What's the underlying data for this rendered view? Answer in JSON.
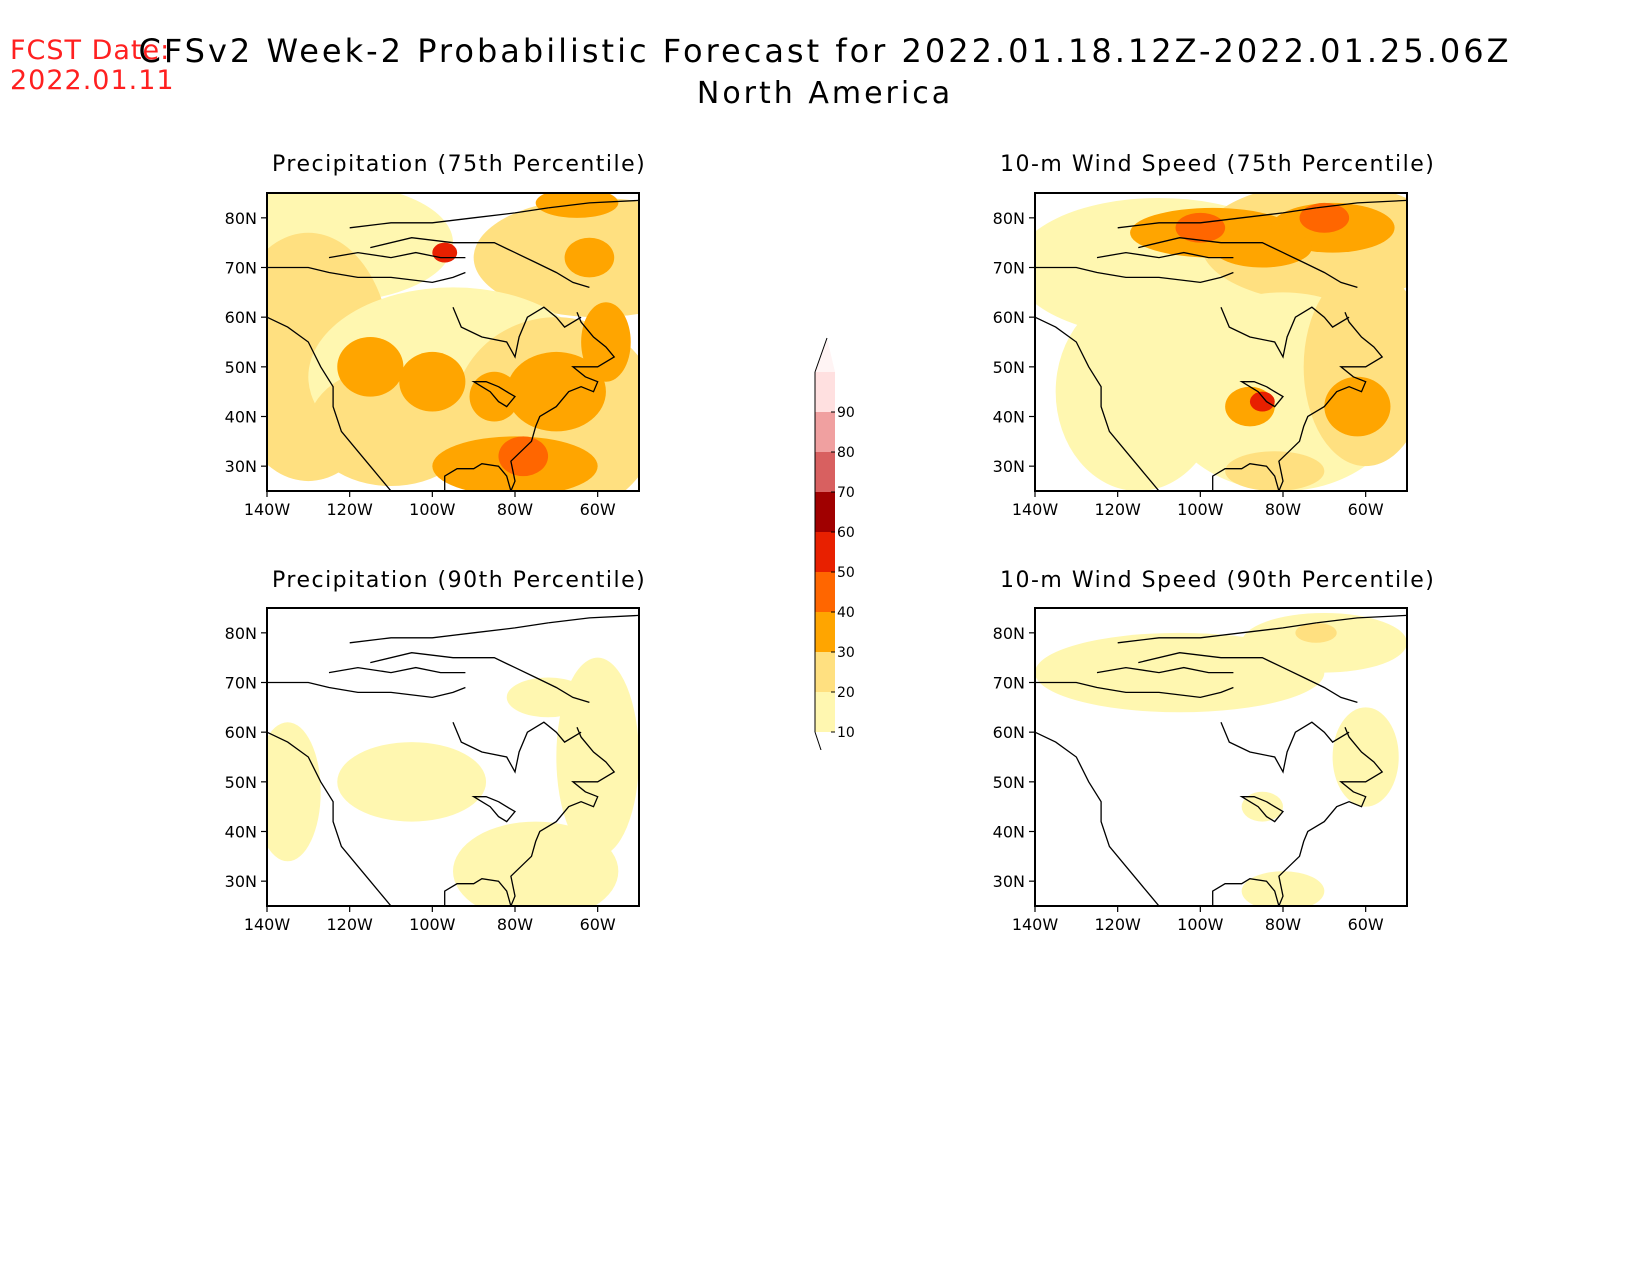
{
  "header": {
    "fcst_label": "FCST Date:",
    "fcst_date": "2022.01.11",
    "title": "CFSv2 Week-2 Probabilistic Forecast for 2022.01.18.12Z-2022.01.25.06Z",
    "region": "North America"
  },
  "panels": [
    {
      "id": "precip75",
      "title": "Precipitation (75th Percentile)"
    },
    {
      "id": "wind75",
      "title": "10-m Wind Speed (75th Percentile)"
    },
    {
      "id": "precip90",
      "title": "Precipitation (90th Percentile)"
    },
    {
      "id": "wind90",
      "title": "10-m Wind Speed (90th Percentile)"
    }
  ],
  "axes": {
    "lat_labels": [
      "80N",
      "70N",
      "60N",
      "50N",
      "40N",
      "30N"
    ],
    "lon_labels": [
      "140W",
      "120W",
      "100W",
      "80W",
      "60W"
    ]
  },
  "colorbar": {
    "labels": [
      "10",
      "20",
      "30",
      "40",
      "50",
      "60",
      "70",
      "80",
      "90"
    ],
    "colors": [
      "#fff7b0",
      "#ffe080",
      "#ffa500",
      "#ff6600",
      "#e82000",
      "#a00000",
      "#d86060",
      "#f0a0a0",
      "#ffe0e0"
    ]
  }
}
